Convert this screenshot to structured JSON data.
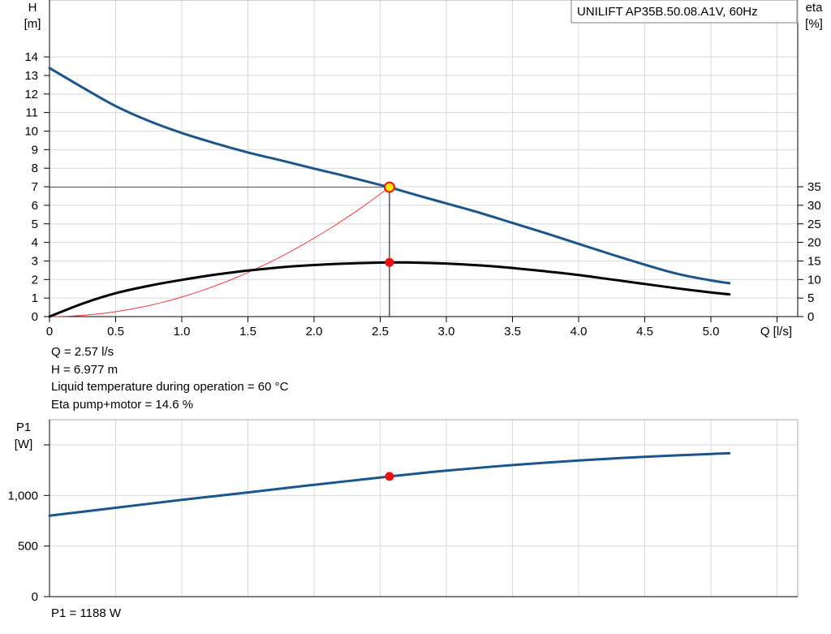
{
  "chart_data": [
    {
      "type": "line",
      "title": "UNILIFT AP35B.50.08.A1V, 60Hz",
      "xlabel": "Q [l/s]",
      "ylabel": "H",
      "ylabel_unit": "[m]",
      "y2label": "eta",
      "y2label_unit": "[%]",
      "xlim": [
        0,
        5.5
      ],
      "ylim": [
        0,
        15
      ],
      "y2lim": [
        0,
        75
      ],
      "x_ticks": [
        "0",
        "0.5",
        "1.0",
        "1.5",
        "2.0",
        "2.5",
        "3.0",
        "3.5",
        "4.0",
        "4.5",
        "5.0"
      ],
      "y_ticks": [
        "0",
        "1",
        "2",
        "3",
        "4",
        "5",
        "6",
        "7",
        "8",
        "9",
        "10",
        "11",
        "12",
        "13",
        "14"
      ],
      "y2_ticks": [
        "0",
        "5",
        "10",
        "15",
        "20",
        "25",
        "30",
        "35"
      ],
      "grid": true,
      "series": [
        {
          "role": "head",
          "axis": "left",
          "color": "#1a5590",
          "x": [
            0,
            0.25,
            0.5,
            0.75,
            1.0,
            1.25,
            1.5,
            1.75,
            2.0,
            2.25,
            2.5,
            2.57,
            2.75,
            3.0,
            3.25,
            3.5,
            3.75,
            4.0,
            4.25,
            4.5,
            4.75,
            5.0,
            5.14
          ],
          "y": [
            13.4,
            12.35,
            11.35,
            10.55,
            9.9,
            9.35,
            8.85,
            8.42,
            7.98,
            7.55,
            7.1,
            6.977,
            6.6,
            6.1,
            5.6,
            5.05,
            4.5,
            3.92,
            3.35,
            2.8,
            2.3,
            1.95,
            1.8
          ]
        },
        {
          "role": "efficiency",
          "axis": "right",
          "color": "#000000",
          "x": [
            0,
            0.25,
            0.5,
            0.75,
            1.0,
            1.25,
            1.5,
            1.75,
            2.0,
            2.25,
            2.5,
            2.57,
            2.75,
            3.0,
            3.25,
            3.5,
            3.75,
            4.0,
            4.25,
            4.5,
            4.75,
            5.0,
            5.14
          ],
          "y": [
            0,
            3.5,
            6.3,
            8.3,
            9.9,
            11.3,
            12.4,
            13.3,
            13.9,
            14.3,
            14.55,
            14.6,
            14.55,
            14.3,
            13.8,
            13.1,
            12.2,
            11.2,
            10.0,
            8.8,
            7.6,
            6.5,
            6.0
          ]
        },
        {
          "role": "system-curve",
          "axis": "left",
          "color": "#ff3333",
          "equation": "H = 6.977 * (Q / 2.57)^2",
          "x_range": [
            0,
            2.57
          ]
        }
      ],
      "operating_point": {
        "Q": 2.57,
        "H": 6.977,
        "eta": 14.6
      }
    },
    {
      "type": "line",
      "ylabel": "P1",
      "ylabel_unit": "[W]",
      "xlim": [
        0,
        5.5
      ],
      "ylim": [
        0,
        1500
      ],
      "y_ticks": [
        "0",
        "500",
        "1,000"
      ],
      "grid": true,
      "series": [
        {
          "role": "power",
          "color": "#1a5590",
          "x": [
            0,
            0.5,
            1.0,
            1.5,
            2.0,
            2.5,
            2.57,
            3.0,
            3.5,
            4.0,
            4.5,
            5.0,
            5.14
          ],
          "y": [
            800,
            878,
            956,
            1030,
            1105,
            1177,
            1188,
            1245,
            1300,
            1345,
            1382,
            1410,
            1416
          ]
        }
      ],
      "operating_point": {
        "Q": 2.57,
        "P1": 1188
      }
    }
  ],
  "info": {
    "q_line": "Q = 2.57 l/s",
    "h_line": "H = 6.977 m",
    "temp_line": "Liquid temperature during operation = 60 °C",
    "eta_line": "Eta pump+motor = 14.6 %",
    "p1_line": "P1 = 1188 W"
  }
}
